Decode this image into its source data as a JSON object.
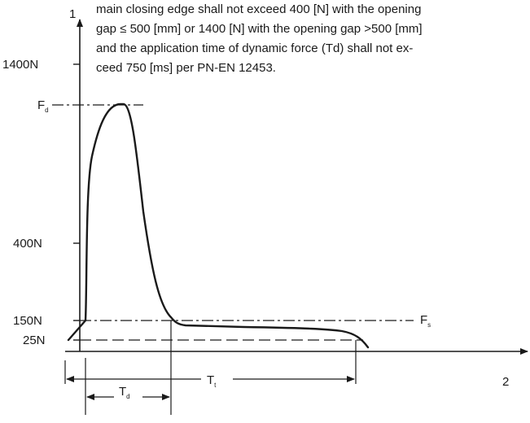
{
  "diagram": {
    "axes": {
      "y_axis_number": "1",
      "x_axis_number": "2",
      "y_ticks": [
        "1400N",
        "400N",
        "150N",
        "25N"
      ]
    },
    "annotation_lines": [
      "main closing edge shall not exceed 400 [N] with the opening",
      "gap ≤ 500 [mm] or 1400 [N] with the opening gap >500 [mm]",
      "and the application time of dynamic force (Td) shall not ex-",
      "ceed 750 [ms] per PN-EN 12453."
    ],
    "symbols": {
      "peak_force": {
        "main": "F",
        "sub": "d"
      },
      "static_force": {
        "main": "F",
        "sub": "s"
      },
      "total_time": {
        "main": "T",
        "sub": "t"
      },
      "dynamic_time": {
        "main": "T",
        "sub": "d"
      }
    }
  },
  "colors": {
    "line": "#1a1a1a",
    "background": "#ffffff"
  }
}
